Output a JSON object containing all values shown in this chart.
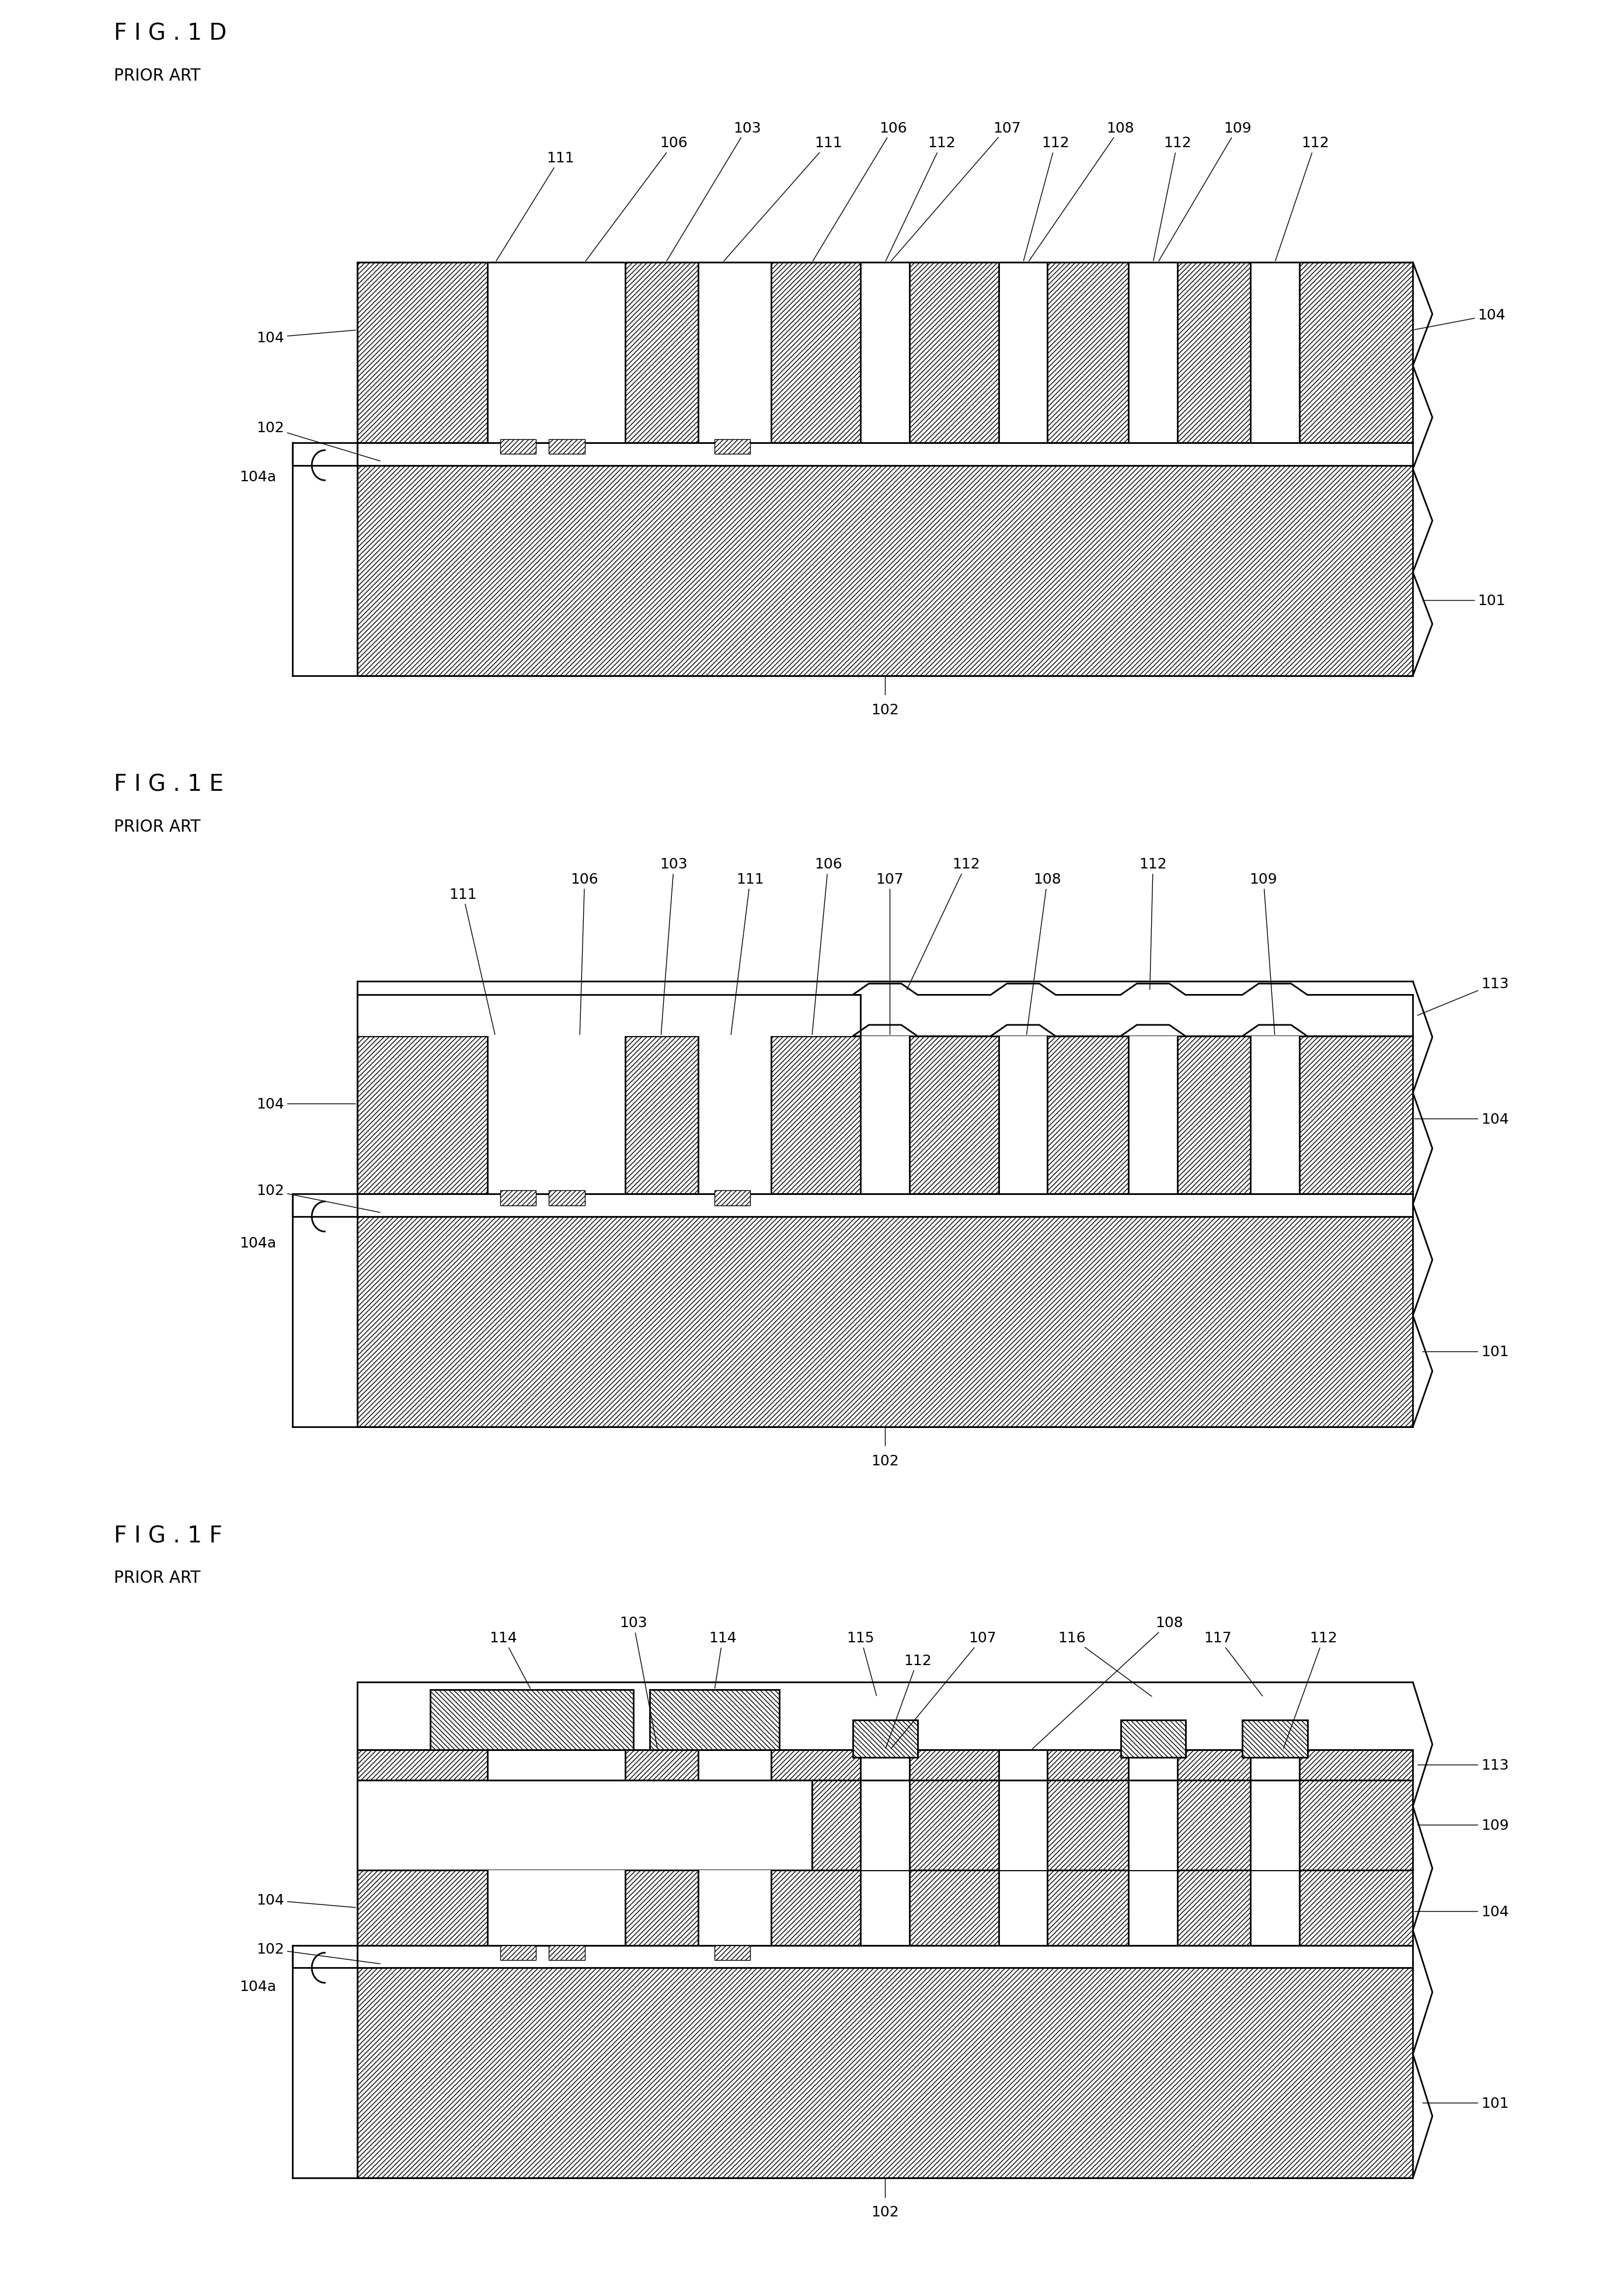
{
  "fig_title_1d": "FIG.1D",
  "fig_title_1e": "FIG.1E",
  "fig_title_1f": "FIG.1F",
  "prior_art": "PRIOR ART",
  "bg_color": "#ffffff",
  "lw": 2.0,
  "tlw": 1.0,
  "fs_title": 28,
  "fs_label": 18,
  "hatch_sub": "////",
  "hatch_poly": "////",
  "hatch_dense": "XXXX"
}
